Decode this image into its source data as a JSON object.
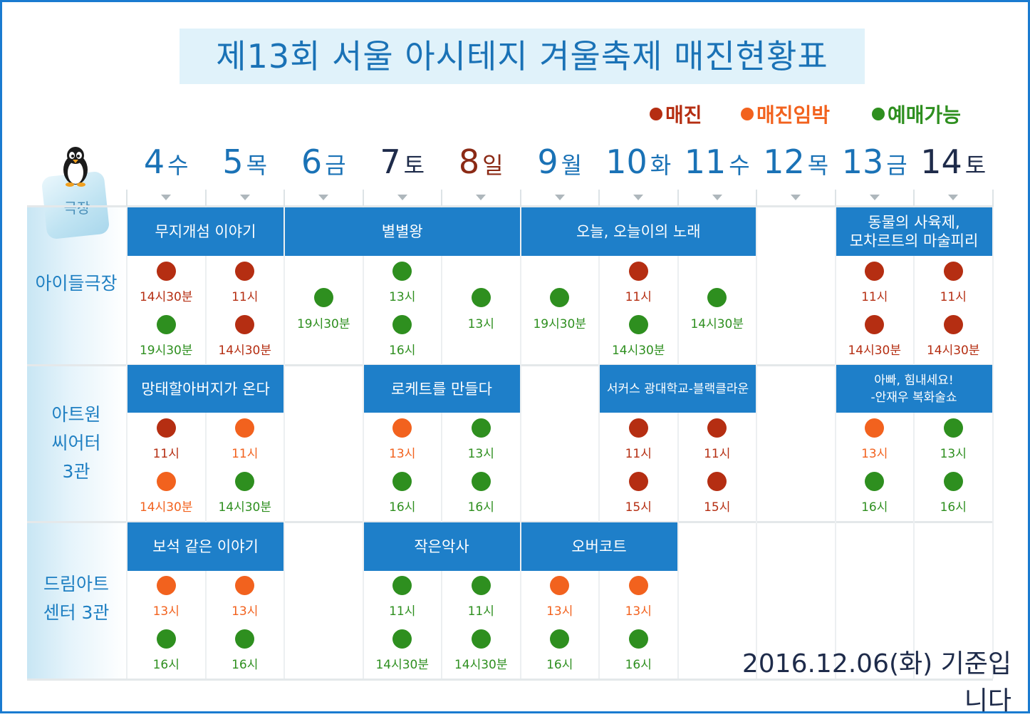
{
  "title": "제13회 서울 아시테지 겨울축제 매진현황표",
  "colors": {
    "title_text": "#1a72b6",
    "show_bar": "#1e7fc9",
    "soldout": "#b52e12",
    "almost": "#f2621e",
    "available": "#2e8f1f"
  },
  "legend": [
    {
      "label": "매진",
      "status": "soldout"
    },
    {
      "label": "매진임박",
      "status": "almost"
    },
    {
      "label": "예매가능",
      "status": "available"
    }
  ],
  "room_header": "극장",
  "room_header_icon": "penguin-icon",
  "days": [
    {
      "num": "4",
      "wd": "수",
      "color": "#1a72b6"
    },
    {
      "num": "5",
      "wd": "목",
      "color": "#1a72b6"
    },
    {
      "num": "6",
      "wd": "금",
      "color": "#1a72b6"
    },
    {
      "num": "7",
      "wd": "토",
      "color": "#1e2b4a"
    },
    {
      "num": "8",
      "wd": "일",
      "color": "#8b2a15"
    },
    {
      "num": "9",
      "wd": "월",
      "color": "#1a72b6"
    },
    {
      "num": "10",
      "wd": "화",
      "color": "#1a72b6"
    },
    {
      "num": "11",
      "wd": "수",
      "color": "#1a72b6"
    },
    {
      "num": "12",
      "wd": "목",
      "color": "#1a72b6"
    },
    {
      "num": "13",
      "wd": "금",
      "color": "#1a72b6"
    },
    {
      "num": "14",
      "wd": "토",
      "color": "#1e2b4a"
    }
  ],
  "theaters": [
    {
      "name": "아이들극장",
      "shows": [
        {
          "title": "무지개섬 이야기",
          "day_start": 0,
          "day_end": 1
        },
        {
          "title": "별별왕",
          "day_start": 2,
          "day_end": 4
        },
        {
          "title": "오늘, 오늘이의 노래",
          "day_start": 5,
          "day_end": 7
        },
        {
          "title": "동물의 사육제,\n모차르트의 마술피리",
          "day_start": 9,
          "day_end": 10
        }
      ],
      "slots": [
        {
          "day": 0,
          "row": 0,
          "time": "14시30분",
          "status": "soldout"
        },
        {
          "day": 0,
          "row": 1,
          "time": "19시30분",
          "status": "available"
        },
        {
          "day": 1,
          "row": 0,
          "time": "11시",
          "status": "soldout"
        },
        {
          "day": 1,
          "row": 1,
          "time": "14시30분",
          "status": "soldout"
        },
        {
          "day": 2,
          "row": 0.5,
          "time": "19시30분",
          "status": "available"
        },
        {
          "day": 3,
          "row": 0,
          "time": "13시",
          "status": "available"
        },
        {
          "day": 3,
          "row": 1,
          "time": "16시",
          "status": "available"
        },
        {
          "day": 4,
          "row": 0.5,
          "time": "13시",
          "status": "available"
        },
        {
          "day": 5,
          "row": 0.5,
          "time": "19시30분",
          "status": "available"
        },
        {
          "day": 6,
          "row": 0,
          "time": "11시",
          "status": "soldout"
        },
        {
          "day": 6,
          "row": 1,
          "time": "14시30분",
          "status": "available"
        },
        {
          "day": 7,
          "row": 0.5,
          "time": "14시30분",
          "status": "available"
        },
        {
          "day": 9,
          "row": 0,
          "time": "11시",
          "status": "soldout"
        },
        {
          "day": 9,
          "row": 1,
          "time": "14시30분",
          "status": "soldout"
        },
        {
          "day": 10,
          "row": 0,
          "time": "11시",
          "status": "soldout"
        },
        {
          "day": 10,
          "row": 1,
          "time": "14시30분",
          "status": "soldout"
        }
      ]
    },
    {
      "name": "아트원\n씨어터\n3관",
      "shows": [
        {
          "title": "망태할아버지가 온다",
          "day_start": 0,
          "day_end": 1
        },
        {
          "title": "로케트를 만들다",
          "day_start": 3,
          "day_end": 4
        },
        {
          "title": "서커스 광대학교-블랙클라운",
          "day_start": 6,
          "day_end": 7,
          "small": true
        },
        {
          "title": "아빠, 힘내세요!\n-안재우 복화술쇼",
          "day_start": 9,
          "day_end": 10,
          "small": true
        }
      ],
      "slots": [
        {
          "day": 0,
          "row": 0,
          "time": "11시",
          "status": "soldout"
        },
        {
          "day": 0,
          "row": 1,
          "time": "14시30분",
          "status": "almost"
        },
        {
          "day": 1,
          "row": 0,
          "time": "11시",
          "status": "almost"
        },
        {
          "day": 1,
          "row": 1,
          "time": "14시30분",
          "status": "available"
        },
        {
          "day": 3,
          "row": 0,
          "time": "13시",
          "status": "almost"
        },
        {
          "day": 3,
          "row": 1,
          "time": "16시",
          "status": "available"
        },
        {
          "day": 4,
          "row": 0,
          "time": "13시",
          "status": "available"
        },
        {
          "day": 4,
          "row": 1,
          "time": "16시",
          "status": "available"
        },
        {
          "day": 6,
          "row": 0,
          "time": "11시",
          "status": "soldout"
        },
        {
          "day": 6,
          "row": 1,
          "time": "15시",
          "status": "soldout"
        },
        {
          "day": 7,
          "row": 0,
          "time": "11시",
          "status": "soldout"
        },
        {
          "day": 7,
          "row": 1,
          "time": "15시",
          "status": "soldout"
        },
        {
          "day": 9,
          "row": 0,
          "time": "13시",
          "status": "almost"
        },
        {
          "day": 9,
          "row": 1,
          "time": "16시",
          "status": "available"
        },
        {
          "day": 10,
          "row": 0,
          "time": "13시",
          "status": "available"
        },
        {
          "day": 10,
          "row": 1,
          "time": "16시",
          "status": "available"
        }
      ]
    },
    {
      "name": "드림아트\n센터 3관",
      "shows": [
        {
          "title": "보석 같은 이야기",
          "day_start": 0,
          "day_end": 1
        },
        {
          "title": "작은악사",
          "day_start": 3,
          "day_end": 4
        },
        {
          "title": "오버코트",
          "day_start": 5,
          "day_end": 6
        }
      ],
      "slots": [
        {
          "day": 0,
          "row": 0,
          "time": "13시",
          "status": "almost"
        },
        {
          "day": 0,
          "row": 1,
          "time": "16시",
          "status": "available"
        },
        {
          "day": 1,
          "row": 0,
          "time": "13시",
          "status": "almost"
        },
        {
          "day": 1,
          "row": 1,
          "time": "16시",
          "status": "available"
        },
        {
          "day": 3,
          "row": 0,
          "time": "11시",
          "status": "available"
        },
        {
          "day": 3,
          "row": 1,
          "time": "14시30분",
          "status": "available"
        },
        {
          "day": 4,
          "row": 0,
          "time": "11시",
          "status": "available"
        },
        {
          "day": 4,
          "row": 1,
          "time": "14시30분",
          "status": "available"
        },
        {
          "day": 5,
          "row": 0,
          "time": "13시",
          "status": "almost"
        },
        {
          "day": 5,
          "row": 1,
          "time": "16시",
          "status": "available"
        },
        {
          "day": 6,
          "row": 0,
          "time": "13시",
          "status": "almost"
        },
        {
          "day": 6,
          "row": 1,
          "time": "16시",
          "status": "available"
        }
      ]
    }
  ],
  "basis_note": "2016.12.06(화) 기준입니다"
}
